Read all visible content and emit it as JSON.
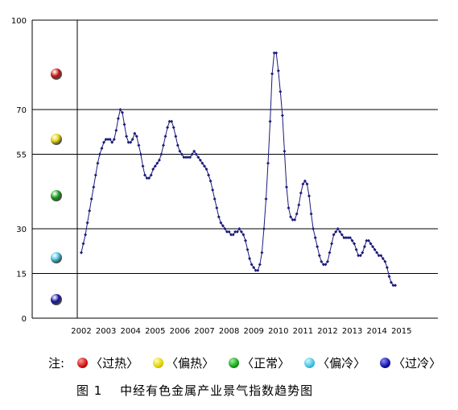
{
  "chart_data": {
    "type": "line",
    "title": "",
    "xlabel": "",
    "ylabel": "",
    "ylim": [
      0,
      100
    ],
    "yticks": [
      0,
      15,
      30,
      55,
      70,
      100
    ],
    "year_labels": [
      "2002",
      "2003",
      "2004",
      "2005",
      "2006",
      "2007",
      "2008",
      "2009",
      "2010",
      "2011",
      "2012",
      "2013",
      "2014",
      "2015"
    ],
    "x_start": 2002.0,
    "x_step": 0.08333,
    "series": [
      {
        "color": "#1a1a7a",
        "values": [
          22,
          25,
          28,
          32,
          36,
          40,
          44,
          48,
          52,
          55,
          57,
          59,
          60,
          60,
          60,
          59,
          60,
          63,
          67,
          70,
          69,
          65,
          61,
          59,
          59,
          60,
          62,
          61,
          58,
          55,
          51,
          48,
          47,
          47,
          48,
          50,
          51,
          52,
          53,
          55,
          58,
          61,
          64,
          66,
          66,
          64,
          61,
          58,
          56,
          55,
          54,
          54,
          54,
          54,
          55,
          56,
          55,
          54,
          53,
          52,
          51,
          50,
          48,
          46,
          43,
          40,
          37,
          34,
          32,
          31,
          30,
          29,
          29,
          28,
          28,
          29,
          29,
          30,
          29,
          28,
          26,
          23,
          20,
          18,
          17,
          16,
          16,
          18,
          22,
          30,
          40,
          52,
          66,
          82,
          89,
          89,
          83,
          76,
          68,
          56,
          44,
          37,
          34,
          33,
          33,
          35,
          38,
          42,
          45,
          46,
          45,
          41,
          35,
          30,
          27,
          24,
          21,
          19,
          18,
          18,
          19,
          22,
          25,
          28,
          29,
          30,
          29,
          28,
          27,
          27,
          27,
          27,
          26,
          25,
          23,
          21,
          21,
          22,
          24,
          26,
          26,
          25,
          24,
          23,
          22,
          21,
          21,
          20,
          19,
          17,
          14,
          12,
          11,
          11
        ]
      }
    ],
    "bands": [
      {
        "name": "过热",
        "color": "#cc1010"
      },
      {
        "name": "偏热",
        "color": "#e0d000"
      },
      {
        "name": "正常",
        "color": "#15a015"
      },
      {
        "name": "偏冷",
        "color": "#40c0e0"
      },
      {
        "name": "过冷",
        "color": "#1010a0"
      }
    ]
  },
  "legend": {
    "note": "注:",
    "items": [
      "〈过热〉",
      "〈偏热〉",
      "〈正常〉",
      "〈偏冷〉",
      "〈过冷〉"
    ]
  },
  "caption": "图 1　 中经有色金属产业景气指数趋势图"
}
